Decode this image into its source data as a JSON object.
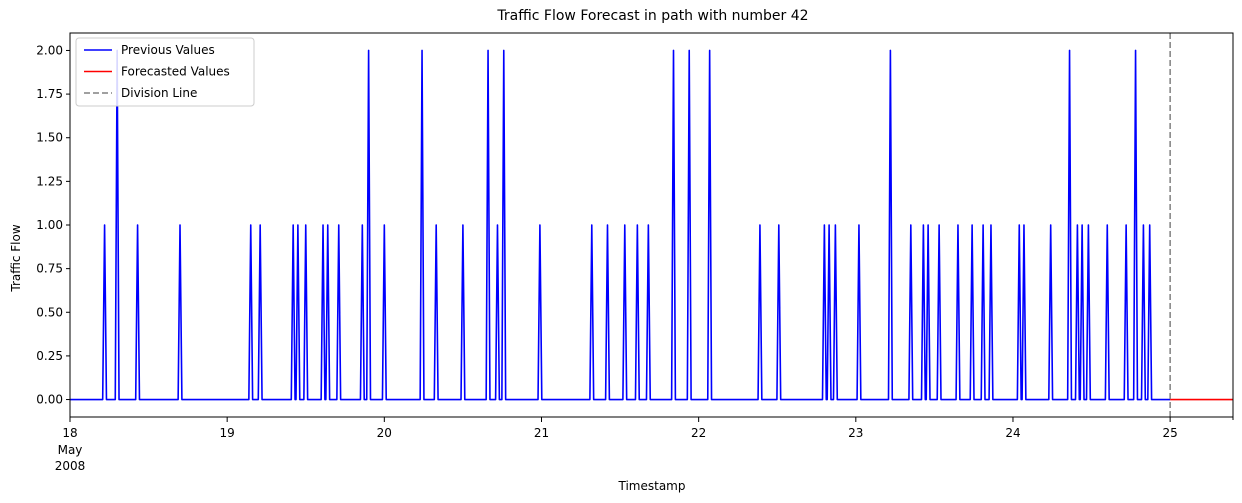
{
  "chart_data": {
    "type": "line",
    "title": "Traffic Flow Forecast in path with number 42",
    "xlabel": "Timestamp",
    "ylabel": "Traffic Flow",
    "xlim": [
      18.0,
      25.4
    ],
    "ylim": [
      -0.1,
      2.1
    ],
    "grid": false,
    "legend_position": "top-left",
    "x_ticks": [
      {
        "value": 18,
        "label": "18",
        "sublabels": [
          "May",
          "2008"
        ]
      },
      {
        "value": 19,
        "label": "19"
      },
      {
        "value": 20,
        "label": "20"
      },
      {
        "value": 21,
        "label": "21"
      },
      {
        "value": 22,
        "label": "22"
      },
      {
        "value": 23,
        "label": "23"
      },
      {
        "value": 24,
        "label": "24"
      },
      {
        "value": 25,
        "label": "25"
      }
    ],
    "y_ticks": [
      {
        "value": 0.0,
        "label": "0.00"
      },
      {
        "value": 0.25,
        "label": "0.25"
      },
      {
        "value": 0.5,
        "label": "0.50"
      },
      {
        "value": 0.75,
        "label": "0.75"
      },
      {
        "value": 1.0,
        "label": "1.00"
      },
      {
        "value": 1.25,
        "label": "1.25"
      },
      {
        "value": 1.5,
        "label": "1.50"
      },
      {
        "value": 1.75,
        "label": "1.75"
      },
      {
        "value": 2.0,
        "label": "2.00"
      }
    ],
    "series": [
      {
        "name": "Previous Values",
        "color": "#0000ff",
        "style": "solid",
        "x_range": [
          18.0,
          25.0
        ],
        "baseline": 0,
        "spike_halfwidth": 0.012,
        "spikes": [
          {
            "x": 18.22,
            "y": 1
          },
          {
            "x": 18.3,
            "y": 2
          },
          {
            "x": 18.43,
            "y": 1
          },
          {
            "x": 18.7,
            "y": 1
          },
          {
            "x": 19.15,
            "y": 1
          },
          {
            "x": 19.21,
            "y": 1
          },
          {
            "x": 19.42,
            "y": 1
          },
          {
            "x": 19.45,
            "y": 1
          },
          {
            "x": 19.5,
            "y": 1
          },
          {
            "x": 19.61,
            "y": 1
          },
          {
            "x": 19.64,
            "y": 1
          },
          {
            "x": 19.71,
            "y": 1
          },
          {
            "x": 19.86,
            "y": 1
          },
          {
            "x": 19.9,
            "y": 2
          },
          {
            "x": 20.0,
            "y": 1
          },
          {
            "x": 20.24,
            "y": 2
          },
          {
            "x": 20.33,
            "y": 1
          },
          {
            "x": 20.5,
            "y": 1
          },
          {
            "x": 20.66,
            "y": 2
          },
          {
            "x": 20.72,
            "y": 1
          },
          {
            "x": 20.76,
            "y": 2
          },
          {
            "x": 20.99,
            "y": 1
          },
          {
            "x": 21.32,
            "y": 1
          },
          {
            "x": 21.42,
            "y": 1
          },
          {
            "x": 21.53,
            "y": 1
          },
          {
            "x": 21.61,
            "y": 1
          },
          {
            "x": 21.68,
            "y": 1
          },
          {
            "x": 21.84,
            "y": 2
          },
          {
            "x": 21.94,
            "y": 2
          },
          {
            "x": 22.07,
            "y": 2
          },
          {
            "x": 22.39,
            "y": 1
          },
          {
            "x": 22.51,
            "y": 1
          },
          {
            "x": 22.8,
            "y": 1
          },
          {
            "x": 22.83,
            "y": 1
          },
          {
            "x": 22.87,
            "y": 1
          },
          {
            "x": 23.02,
            "y": 1
          },
          {
            "x": 23.22,
            "y": 2
          },
          {
            "x": 23.35,
            "y": 1
          },
          {
            "x": 23.43,
            "y": 1
          },
          {
            "x": 23.46,
            "y": 1
          },
          {
            "x": 23.53,
            "y": 1
          },
          {
            "x": 23.65,
            "y": 1
          },
          {
            "x": 23.74,
            "y": 1
          },
          {
            "x": 23.81,
            "y": 1
          },
          {
            "x": 23.86,
            "y": 1
          },
          {
            "x": 24.04,
            "y": 1
          },
          {
            "x": 24.07,
            "y": 1
          },
          {
            "x": 24.24,
            "y": 1
          },
          {
            "x": 24.36,
            "y": 2
          },
          {
            "x": 24.41,
            "y": 1
          },
          {
            "x": 24.44,
            "y": 1
          },
          {
            "x": 24.48,
            "y": 1
          },
          {
            "x": 24.6,
            "y": 1
          },
          {
            "x": 24.72,
            "y": 1
          },
          {
            "x": 24.78,
            "y": 2
          },
          {
            "x": 24.83,
            "y": 1
          },
          {
            "x": 24.87,
            "y": 1
          }
        ]
      },
      {
        "name": "Forecasted Values",
        "color": "#ff0000",
        "style": "solid",
        "x": [
          25.0,
          25.4
        ],
        "y": [
          0,
          0
        ]
      }
    ],
    "division_line": {
      "name": "Division Line",
      "color": "#808080",
      "style": "dashed",
      "x": 25.0
    }
  }
}
